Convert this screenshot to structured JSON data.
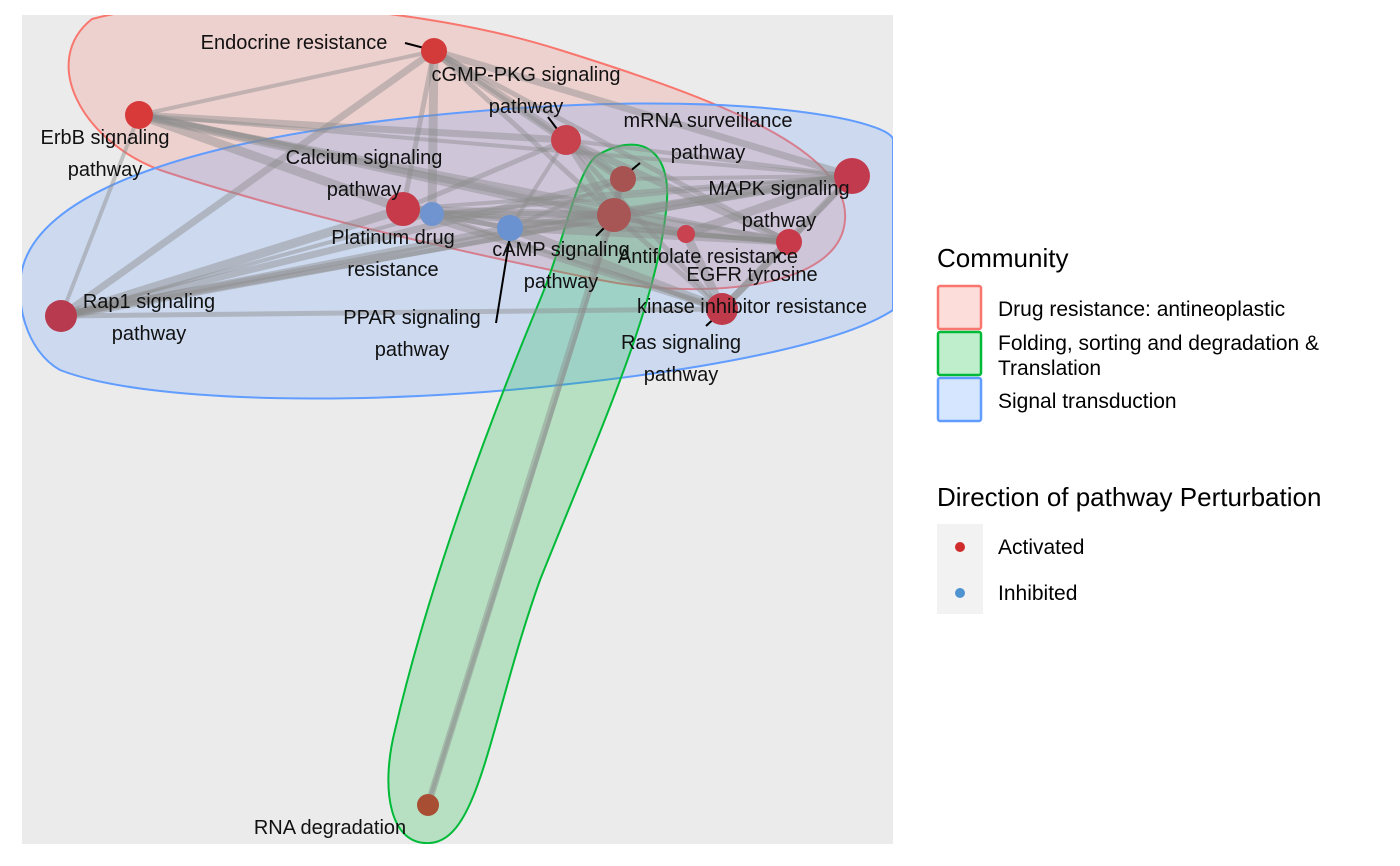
{
  "legend": {
    "community_title": "Community",
    "communities": [
      {
        "label_lines": [
          "Drug resistance: antineoplastic"
        ],
        "stroke": "#F8766D",
        "fill": "#F8766D"
      },
      {
        "label_lines": [
          "Folding, sorting and degradation &",
          "Translation"
        ],
        "stroke": "#00BA38",
        "fill": "#00BA38"
      },
      {
        "label_lines": [
          "Signal transduction"
        ],
        "stroke": "#619CFF",
        "fill": "#619CFF"
      }
    ],
    "direction_title": "Direction of pathway Perturbation",
    "directions": [
      {
        "label": "Activated",
        "color": "#D12C2C"
      },
      {
        "label": "Inhibited",
        "color": "#4F93D1"
      }
    ]
  },
  "nodes": [
    {
      "id": "endocrine",
      "lines": [
        "Endocrine resistance"
      ],
      "color": "#D33A3A"
    },
    {
      "id": "cgmp",
      "lines": [
        "cGMP-PKG signaling",
        "pathway"
      ],
      "color": "#C8424E"
    },
    {
      "id": "erbb",
      "lines": [
        "ErbB signaling",
        "pathway"
      ],
      "color": "#D83A3A"
    },
    {
      "id": "mrna",
      "lines": [
        "mRNA surveillance",
        "pathway"
      ],
      "color": "#A65352"
    },
    {
      "id": "calcium",
      "lines": [
        "Calcium signaling",
        "pathway"
      ],
      "color": "#C63A49"
    },
    {
      "id": "mapk",
      "lines": [
        "MAPK signaling",
        "pathway"
      ],
      "color": "#C23A4E"
    },
    {
      "id": "platinum",
      "lines": [
        "Platinum drug",
        "resistance"
      ],
      "color": "#6F94CF"
    },
    {
      "id": "camp",
      "lines": [
        "cAMP signaling",
        "pathway"
      ],
      "color": "#6A92D0"
    },
    {
      "id": "center",
      "lines": [],
      "color": "#A75555"
    },
    {
      "id": "antifolate",
      "lines": [
        "Antifolate resistance"
      ],
      "color": "#C9424F"
    },
    {
      "id": "egfr",
      "lines": [
        "EGFR tyrosine",
        "kinase inhibitor resistance"
      ],
      "color": "#C83A49"
    },
    {
      "id": "rap1",
      "lines": [
        "Rap1 signaling",
        "pathway"
      ],
      "color": "#B83A4E"
    },
    {
      "id": "ppar",
      "lines": [
        "PPAR signaling",
        "pathway"
      ],
      "color": "#6A92D0"
    },
    {
      "id": "ras",
      "lines": [
        "Ras signaling",
        "pathway"
      ],
      "color": "#BF3A4A"
    },
    {
      "id": "rnadeg",
      "lines": [
        "RNA degradation"
      ],
      "color": "#A84E33"
    }
  ],
  "edges": [
    [
      "endocrine",
      "cgmp"
    ],
    [
      "endocrine",
      "erbb"
    ],
    [
      "endocrine",
      "calcium"
    ],
    [
      "endocrine",
      "mapk"
    ],
    [
      "endocrine",
      "center"
    ],
    [
      "endocrine",
      "platinum"
    ],
    [
      "endocrine",
      "rap1"
    ],
    [
      "endocrine",
      "mrna"
    ],
    [
      "endocrine",
      "egfr"
    ],
    [
      "erbb",
      "cgmp"
    ],
    [
      "erbb",
      "calcium"
    ],
    [
      "erbb",
      "mapk"
    ],
    [
      "erbb",
      "center"
    ],
    [
      "erbb",
      "rap1"
    ],
    [
      "erbb",
      "egfr"
    ],
    [
      "erbb",
      "antifolate"
    ],
    [
      "cgmp",
      "calcium"
    ],
    [
      "cgmp",
      "mapk"
    ],
    [
      "cgmp",
      "center"
    ],
    [
      "cgmp",
      "camp"
    ],
    [
      "cgmp",
      "mrna"
    ],
    [
      "cgmp",
      "egfr"
    ],
    [
      "cgmp",
      "ras"
    ],
    [
      "calcium",
      "mapk"
    ],
    [
      "calcium",
      "center"
    ],
    [
      "calcium",
      "rap1"
    ],
    [
      "calcium",
      "camp"
    ],
    [
      "calcium",
      "ras"
    ],
    [
      "calcium",
      "egfr"
    ],
    [
      "calcium",
      "platinum"
    ],
    [
      "mapk",
      "center"
    ],
    [
      "mapk",
      "mrna"
    ],
    [
      "mapk",
      "egfr"
    ],
    [
      "mapk",
      "ras"
    ],
    [
      "mapk",
      "rap1"
    ],
    [
      "mapk",
      "antifolate"
    ],
    [
      "mapk",
      "camp"
    ],
    [
      "mapk",
      "platinum"
    ],
    [
      "rap1",
      "ras"
    ],
    [
      "rap1",
      "camp"
    ],
    [
      "rap1",
      "center"
    ],
    [
      "rap1",
      "platinum"
    ],
    [
      "rap1",
      "mrna"
    ],
    [
      "center",
      "mrna"
    ],
    [
      "center",
      "ras"
    ],
    [
      "center",
      "egfr"
    ],
    [
      "center",
      "antifolate"
    ],
    [
      "center",
      "camp"
    ],
    [
      "center",
      "platinum"
    ],
    [
      "center",
      "rnadeg"
    ],
    [
      "camp",
      "ras"
    ],
    [
      "camp",
      "egfr"
    ],
    [
      "camp",
      "platinum"
    ],
    [
      "camp",
      "mrna"
    ],
    [
      "ras",
      "egfr"
    ],
    [
      "ras",
      "antifolate"
    ],
    [
      "egfr",
      "antifolate"
    ],
    [
      "mrna",
      "rnadeg"
    ],
    [
      "platinum",
      "egfr"
    ],
    [
      "platinum",
      "ras"
    ]
  ],
  "edge_color": "#8C8C8C",
  "panel_color": "#EBEBEB"
}
